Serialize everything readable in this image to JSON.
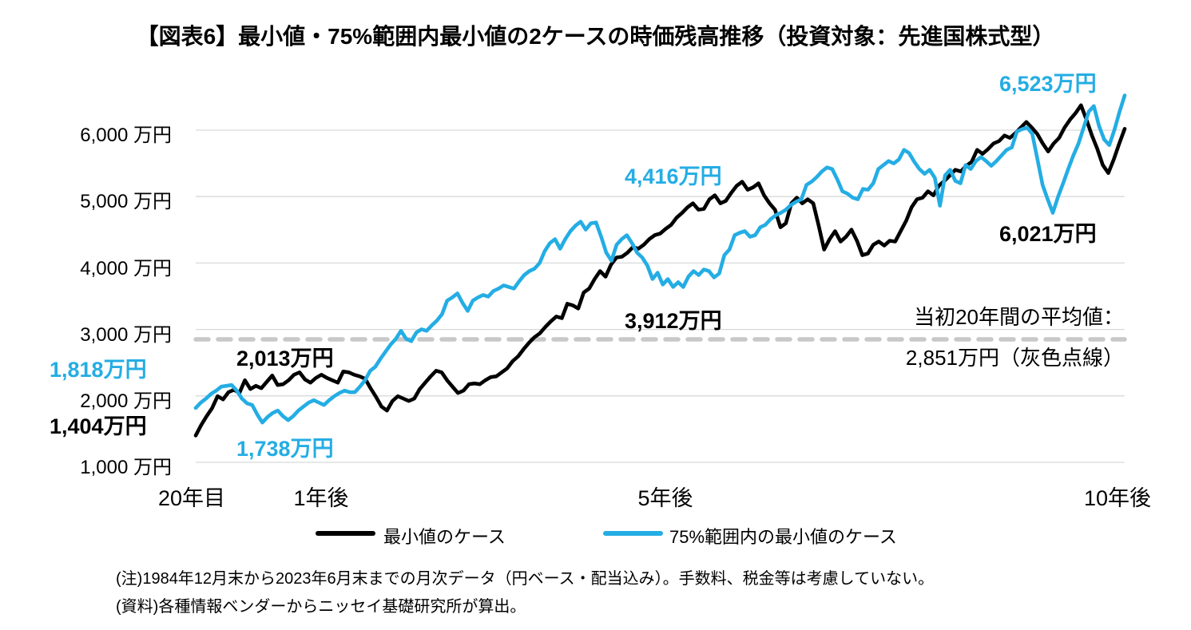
{
  "title": "【図表6】最小値・75%範囲内最小値の2ケースの時価残高推移（投資対象：先進国株式型）",
  "colors": {
    "black_series": "#000000",
    "cyan_series": "#24ADE4",
    "average_dash": "#C8C8C8",
    "gridline": "#D9D9D9"
  },
  "legend": {
    "items": [
      {
        "label": "最小値のケース",
        "color": "#000000"
      },
      {
        "label": "75%範囲内の最小値のケース",
        "color": "#24ADE4"
      }
    ]
  },
  "footnotes": [
    "(注)1984年12月末から2023年6月末までの月次データ（円ベース・配当込み）。手数料、税金等は考慮していない。",
    "(資料)各種情報ベンダーからニッセイ基礎研究所が算出。"
  ],
  "chart_data": {
    "type": "line",
    "title": "【図表6】最小値・75%範囲内最小値の2ケースの時価残高推移（投資対象：先進国株式型）",
    "unit": "万円",
    "grid": "horizontal",
    "legend_position": "bottom",
    "ylim": [
      1000,
      6000
    ],
    "y_ticks": [
      {
        "value": 6000,
        "label": "6,000 万円"
      },
      {
        "value": 5000,
        "label": "5,000 万円"
      },
      {
        "value": 4000,
        "label": "4,000 万円"
      },
      {
        "value": 3000,
        "label": "3,000 万円"
      },
      {
        "value": 2000,
        "label": "2,000 万円"
      },
      {
        "value": 1000,
        "label": "1,000 万円"
      }
    ],
    "x_ticks": [
      {
        "pos": 0.0,
        "label": "20年目"
      },
      {
        "pos": 0.135,
        "label": "1年後"
      },
      {
        "pos": 0.506,
        "label": "5年後"
      },
      {
        "pos": 0.994,
        "label": "10年後"
      }
    ],
    "average_line": {
      "value": 2851,
      "label_line1": "当初20年間の平均値：",
      "label_line2": "2,851万円（灰色点線）",
      "color": "#C8C8C8"
    },
    "annotations": [
      {
        "text": "1,818万円",
        "series": "75%範囲内の最小値のケース",
        "color": "#24ADE4"
      },
      {
        "text": "1,404万円",
        "series": "最小値のケース",
        "color": "#000000"
      },
      {
        "text": "2,013万円",
        "series": "最小値のケース",
        "color": "#000000"
      },
      {
        "text": "1,738万円",
        "series": "75%範囲内の最小値のケース",
        "color": "#24ADE4"
      },
      {
        "text": "4,416万円",
        "series": "75%範囲内の最小値のケース",
        "color": "#24ADE4"
      },
      {
        "text": "3,912万円",
        "series": "最小値のケース",
        "color": "#000000"
      },
      {
        "text": "6,523万円",
        "series": "75%範囲内の最小値のケース",
        "color": "#24ADE4"
      },
      {
        "text": "6,021万円",
        "series": "最小値のケース",
        "color": "#000000"
      }
    ],
    "series": [
      {
        "name": "最小値のケース",
        "color": "#000000",
        "start_value": 1404,
        "end_value": 6021,
        "values": [
          1404,
          1560,
          1695,
          1815,
          1995,
          1947,
          2055,
          2091,
          2043,
          2235,
          2103,
          2151,
          2115,
          2211,
          2307,
          2163,
          2175,
          2235,
          2319,
          2355,
          2247,
          2199,
          2271,
          2319,
          2271,
          2235,
          2199,
          2367,
          2355,
          2319,
          2295,
          2259,
          2115,
          1983,
          1839,
          1779,
          1923,
          1995,
          1959,
          1923,
          1959,
          2103,
          2199,
          2295,
          2379,
          2355,
          2235,
          2139,
          2043,
          2079,
          2175,
          2187,
          2175,
          2235,
          2283,
          2295,
          2355,
          2415,
          2523,
          2595,
          2703,
          2799,
          2883,
          2943,
          3039,
          3123,
          3195,
          3171,
          3387,
          3363,
          3315,
          3555,
          3615,
          3759,
          3879,
          3795,
          3975,
          4083,
          4095,
          4155,
          4239,
          4215,
          4275,
          4359,
          4419,
          4443,
          4515,
          4575,
          4683,
          4755,
          4839,
          4899,
          4803,
          4815,
          4959,
          5019,
          4899,
          4935,
          5055,
          5163,
          5223,
          5103,
          5139,
          5199,
          5019,
          4899,
          4803,
          4539,
          4599,
          4899,
          4983,
          4899,
          4959,
          4899,
          4563,
          4203,
          4359,
          4479,
          4323,
          4395,
          4503,
          4335,
          4119,
          4143,
          4275,
          4323,
          4263,
          4335,
          4323,
          4479,
          4635,
          4839,
          4959,
          4983,
          5079,
          5019,
          5163,
          5235,
          5319,
          5403,
          5379,
          5463,
          5523,
          5703,
          5643,
          5715,
          5799,
          5835,
          5919,
          5883,
          5955,
          6039,
          6123,
          6039,
          5943,
          5799,
          5679,
          5799,
          5883,
          6039,
          6159,
          6255,
          6375,
          6159,
          5919,
          5715,
          5475,
          5355,
          5559,
          5799,
          6021
        ]
      },
      {
        "name": "75%範囲内の最小値のケース",
        "color": "#24ADE4",
        "start_value": 1818,
        "end_value": 6523,
        "values": [
          1818,
          1899,
          1959,
          2031,
          2079,
          2139,
          2151,
          2163,
          2079,
          1959,
          1887,
          1863,
          1719,
          1599,
          1683,
          1743,
          1779,
          1695,
          1635,
          1695,
          1779,
          1839,
          1899,
          1935,
          1899,
          1863,
          1935,
          1995,
          2043,
          2079,
          2055,
          2055,
          2139,
          2235,
          2379,
          2439,
          2559,
          2667,
          2775,
          2859,
          2979,
          2859,
          2823,
          2955,
          3003,
          2979,
          3063,
          3135,
          3231,
          3435,
          3483,
          3543,
          3399,
          3279,
          3435,
          3483,
          3519,
          3495,
          3579,
          3615,
          3663,
          3639,
          3615,
          3723,
          3819,
          3879,
          3915,
          3999,
          4179,
          4299,
          4359,
          4215,
          4359,
          4479,
          4563,
          4623,
          4503,
          4599,
          4611,
          4395,
          4155,
          4035,
          4275,
          4359,
          4419,
          4299,
          4155,
          4083,
          3963,
          3759,
          3855,
          3675,
          3759,
          3639,
          3711,
          3639,
          3795,
          3879,
          3819,
          3903,
          3879,
          3783,
          3843,
          4119,
          4203,
          4419,
          4455,
          4479,
          4395,
          4419,
          4539,
          4575,
          4659,
          4719,
          4755,
          4803,
          4875,
          4923,
          4959,
          5175,
          5223,
          5295,
          5379,
          5439,
          5415,
          5259,
          5079,
          5043,
          4983,
          4959,
          5115,
          5103,
          5199,
          5415,
          5475,
          5535,
          5499,
          5559,
          5703,
          5655,
          5523,
          5415,
          5343,
          5403,
          5283,
          4863,
          5319,
          5403,
          5235,
          5199,
          5475,
          5415,
          5535,
          5595,
          5535,
          5463,
          5535,
          5619,
          5703,
          5739,
          5979,
          6015,
          6039,
          5943,
          5559,
          5175,
          4959,
          4755,
          4995,
          5199,
          5415,
          5619,
          5799,
          6039,
          6279,
          6363,
          6063,
          5859,
          5775,
          6003,
          6279,
          6523
        ]
      }
    ]
  }
}
